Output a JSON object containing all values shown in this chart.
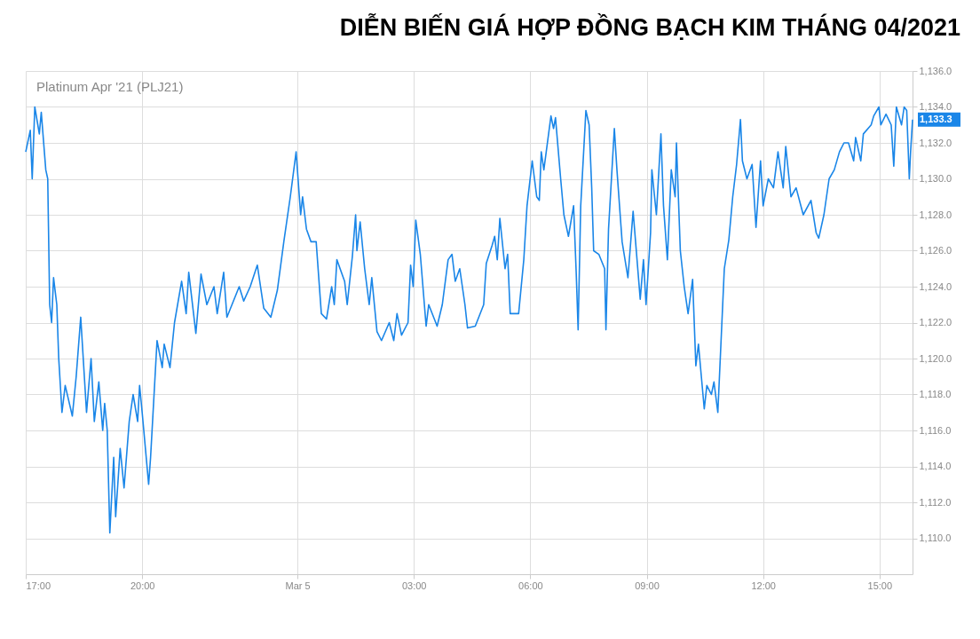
{
  "chart_data": {
    "type": "line",
    "title": "DIỄN BIẾN GIÁ HỢP ĐỒNG BẠCH KIM THÁNG 04/2021",
    "annotations": [
      "Platinum Apr '21 (PLJ21)",
      {
        "text": "1,133.3",
        "x": "2021-03-05T15:51",
        "y": 1133.3
      }
    ],
    "xlim": [
      "2021-03-04T17:00",
      "2021-03-05T15:51"
    ],
    "xticks": [
      {
        "value": "2021-03-04T17:00",
        "label": "17:00"
      },
      {
        "value": "2021-03-04T20:00",
        "label": "20:00"
      },
      {
        "value": "2021-03-05T00:00",
        "label": "Mar 5"
      },
      {
        "value": "2021-03-05T03:00",
        "label": "03:00"
      },
      {
        "value": "2021-03-05T06:00",
        "label": "06:00"
      },
      {
        "value": "2021-03-05T09:00",
        "label": "09:00"
      },
      {
        "value": "2021-03-05T12:00",
        "label": "12:00"
      },
      {
        "value": "2021-03-05T15:00",
        "label": "15:00"
      }
    ],
    "ylim": [
      1108,
      1136
    ],
    "yticks": [
      {
        "value": 1110,
        "label": "1,110.0"
      },
      {
        "value": 1112,
        "label": "1,112.0"
      },
      {
        "value": 1114,
        "label": "1,114.0"
      },
      {
        "value": 1116,
        "label": "1,116.0"
      },
      {
        "value": 1118,
        "label": "1,118.0"
      },
      {
        "value": 1120,
        "label": "1,120.0"
      },
      {
        "value": 1122,
        "label": "1,122.0"
      },
      {
        "value": 1124,
        "label": "1,124.0"
      },
      {
        "value": 1126,
        "label": "1,126.0"
      },
      {
        "value": 1128,
        "label": "1,128.0"
      },
      {
        "value": 1130,
        "label": "1,130.0"
      },
      {
        "value": 1132,
        "label": "1,132.0"
      },
      {
        "value": 1134,
        "label": "1,134.0"
      },
      {
        "value": 1136,
        "label": "1,136.0"
      }
    ],
    "grid": true,
    "series": [
      {
        "color": "#1a86e8",
        "x": [
          "2021-03-04T17:00",
          "2021-03-04T17:07",
          "2021-03-04T17:10",
          "2021-03-04T17:14",
          "2021-03-04T17:21",
          "2021-03-04T17:24",
          "2021-03-04T17:31",
          "2021-03-04T17:34",
          "2021-03-04T17:37",
          "2021-03-04T17:40",
          "2021-03-04T17:43",
          "2021-03-04T17:48",
          "2021-03-04T17:51",
          "2021-03-04T17:56",
          "2021-03-04T18:01",
          "2021-03-04T18:12",
          "2021-03-04T18:18",
          "2021-03-04T18:25",
          "2021-03-04T18:34",
          "2021-03-04T18:41",
          "2021-03-04T18:46",
          "2021-03-04T18:53",
          "2021-03-04T18:59",
          "2021-03-04T19:02",
          "2021-03-04T19:06",
          "2021-03-04T19:10",
          "2021-03-04T19:16",
          "2021-03-04T19:19",
          "2021-03-04T19:26",
          "2021-03-04T19:32",
          "2021-03-04T19:40",
          "2021-03-04T19:46",
          "2021-03-04T19:53",
          "2021-03-04T19:56",
          "2021-03-04T20:00",
          "2021-03-04T20:10",
          "2021-03-04T20:13",
          "2021-03-04T20:23",
          "2021-03-04T20:31",
          "2021-03-04T20:34",
          "2021-03-04T20:43",
          "2021-03-04T20:50",
          "2021-03-04T21:01",
          "2021-03-04T21:08",
          "2021-03-04T21:12",
          "2021-03-04T21:23",
          "2021-03-04T21:31",
          "2021-03-04T21:40",
          "2021-03-04T21:51",
          "2021-03-04T21:56",
          "2021-03-04T22:06",
          "2021-03-04T22:11",
          "2021-03-04T22:30",
          "2021-03-04T22:37",
          "2021-03-04T22:47",
          "2021-03-04T22:58",
          "2021-03-04T23:08",
          "2021-03-04T23:19",
          "2021-03-04T23:29",
          "2021-03-04T23:39",
          "2021-03-04T23:49",
          "2021-03-04T23:58",
          "2021-03-05T00:05",
          "2021-03-05T00:08",
          "2021-03-05T00:14",
          "2021-03-05T00:21",
          "2021-03-05T00:29",
          "2021-03-05T00:37",
          "2021-03-05T00:45",
          "2021-03-05T00:53",
          "2021-03-05T00:57",
          "2021-03-05T01:01",
          "2021-03-05T01:13",
          "2021-03-05T01:17",
          "2021-03-05T01:25",
          "2021-03-05T01:30",
          "2021-03-05T01:32",
          "2021-03-05T01:37",
          "2021-03-05T01:44",
          "2021-03-05T01:51",
          "2021-03-05T01:55",
          "2021-03-05T02:03",
          "2021-03-05T02:10",
          "2021-03-05T02:22",
          "2021-03-05T02:29",
          "2021-03-05T02:34",
          "2021-03-05T02:41",
          "2021-03-05T02:51",
          "2021-03-05T02:55",
          "2021-03-05T02:59",
          "2021-03-05T03:03",
          "2021-03-05T03:10",
          "2021-03-05T03:19",
          "2021-03-05T03:23",
          "2021-03-05T03:36",
          "2021-03-05T03:44",
          "2021-03-05T03:53",
          "2021-03-05T03:59",
          "2021-03-05T04:04",
          "2021-03-05T04:11",
          "2021-03-05T04:19",
          "2021-03-05T04:23",
          "2021-03-05T04:35",
          "2021-03-05T04:48",
          "2021-03-05T04:52",
          "2021-03-05T05:01",
          "2021-03-05T05:05",
          "2021-03-05T05:09",
          "2021-03-05T05:13",
          "2021-03-05T05:21",
          "2021-03-05T05:25",
          "2021-03-05T05:29",
          "2021-03-05T05:42",
          "2021-03-05T05:50",
          "2021-03-05T05:55",
          "2021-03-05T06:03",
          "2021-03-05T06:10",
          "2021-03-05T06:14",
          "2021-03-05T06:17",
          "2021-03-05T06:21",
          "2021-03-05T06:32",
          "2021-03-05T06:36",
          "2021-03-05T06:39",
          "2021-03-05T06:47",
          "2021-03-05T06:52",
          "2021-03-05T06:59",
          "2021-03-05T07:07",
          "2021-03-05T07:11",
          "2021-03-05T07:14",
          "2021-03-05T07:18",
          "2021-03-05T07:26",
          "2021-03-05T07:31",
          "2021-03-05T07:35",
          "2021-03-05T07:38",
          "2021-03-05T07:46",
          "2021-03-05T07:55",
          "2021-03-05T07:57",
          "2021-03-05T08:01",
          "2021-03-05T08:10",
          "2021-03-05T08:14",
          "2021-03-05T08:22",
          "2021-03-05T08:31",
          "2021-03-05T08:39",
          "2021-03-05T08:50",
          "2021-03-05T08:55",
          "2021-03-05T08:59",
          "2021-03-05T09:06",
          "2021-03-05T09:08",
          "2021-03-05T09:15",
          "2021-03-05T09:22",
          "2021-03-05T09:26",
          "2021-03-05T09:32",
          "2021-03-05T09:38",
          "2021-03-05T09:44",
          "2021-03-05T09:46",
          "2021-03-05T09:52",
          "2021-03-05T09:58",
          "2021-03-05T10:04",
          "2021-03-05T10:11",
          "2021-03-05T10:16",
          "2021-03-05T10:20",
          "2021-03-05T10:29",
          "2021-03-05T10:33",
          "2021-03-05T10:40",
          "2021-03-05T10:44",
          "2021-03-05T10:50",
          "2021-03-05T10:55",
          "2021-03-05T11:00",
          "2021-03-05T11:07",
          "2021-03-05T11:13",
          "2021-03-05T11:19",
          "2021-03-05T11:25",
          "2021-03-05T11:28",
          "2021-03-05T11:35",
          "2021-03-05T11:43",
          "2021-03-05T11:49",
          "2021-03-05T11:56",
          "2021-03-05T12:00",
          "2021-03-05T12:08",
          "2021-03-05T12:16",
          "2021-03-05T12:23",
          "2021-03-05T12:31",
          "2021-03-05T12:35",
          "2021-03-05T12:43",
          "2021-03-05T12:51",
          "2021-03-05T13:02",
          "2021-03-05T13:14",
          "2021-03-05T13:22",
          "2021-03-05T13:26",
          "2021-03-05T13:34",
          "2021-03-05T13:42",
          "2021-03-05T13:50",
          "2021-03-05T13:58",
          "2021-03-05T14:05",
          "2021-03-05T14:12",
          "2021-03-05T14:20",
          "2021-03-05T14:23",
          "2021-03-05T14:31",
          "2021-03-05T14:35",
          "2021-03-05T14:47",
          "2021-03-05T14:51",
          "2021-03-05T14:59",
          "2021-03-05T15:02",
          "2021-03-05T15:10",
          "2021-03-05T15:18",
          "2021-03-05T15:22",
          "2021-03-05T15:26",
          "2021-03-05T15:34",
          "2021-03-05T15:38",
          "2021-03-05T15:42",
          "2021-03-05T15:46",
          "2021-03-05T15:48",
          "2021-03-05T15:51"
        ],
        "values": [
          1131.5,
          1132.7,
          1130,
          1134,
          1132.5,
          1133.7,
          1130.5,
          1130,
          1123,
          1122,
          1124.5,
          1123,
          1120,
          1117,
          1118.5,
          1116.8,
          1119,
          1122.3,
          1117,
          1120,
          1116.5,
          1118.7,
          1116,
          1117.5,
          1116,
          1110.3,
          1114.5,
          1111.2,
          1115,
          1112.8,
          1116.5,
          1118,
          1116.5,
          1118.5,
          1117,
          1113,
          1114.5,
          1121,
          1119.5,
          1120.8,
          1119.5,
          1122,
          1124.3,
          1122.5,
          1124.8,
          1121.4,
          1124.7,
          1123,
          1124,
          1122.5,
          1124.8,
          1122.3,
          1124,
          1123.2,
          1124,
          1125.2,
          1122.8,
          1122.3,
          1123.8,
          1126.5,
          1129,
          1131.5,
          1128,
          1129,
          1127.2,
          1126.5,
          1126.5,
          1122.5,
          1122.2,
          1124,
          1123,
          1125.5,
          1124.3,
          1123,
          1125.7,
          1128,
          1126,
          1127.6,
          1125,
          1123,
          1124.5,
          1121.5,
          1121,
          1122,
          1121,
          1122.5,
          1121.3,
          1122,
          1125.2,
          1124,
          1127.7,
          1125.8,
          1121.8,
          1123,
          1121.8,
          1123,
          1125.5,
          1125.8,
          1124.3,
          1125,
          1123,
          1121.7,
          1121.8,
          1123,
          1125.3,
          1126.3,
          1126.8,
          1125.5,
          1127.8,
          1125,
          1125.8,
          1122.5,
          1122.5,
          1125.5,
          1128.5,
          1131,
          1129,
          1128.8,
          1131.5,
          1130.5,
          1133.5,
          1132.8,
          1133.4,
          1130,
          1128,
          1126.8,
          1128.5,
          1124.8,
          1121.6,
          1128.5,
          1133.8,
          1133,
          1129.5,
          1126,
          1125.8,
          1125,
          1121.6,
          1127.2,
          1132.8,
          1130.5,
          1126.5,
          1124.5,
          1128.2,
          1123.3,
          1125.5,
          1123,
          1127,
          1130.5,
          1128,
          1132.5,
          1128.5,
          1125.5,
          1130.5,
          1129,
          1132,
          1126,
          1124,
          1122.5,
          1124.4,
          1119.6,
          1120.8,
          1117.2,
          1118.5,
          1118,
          1118.7,
          1117,
          1121,
          1125,
          1126.6,
          1129,
          1130.8,
          1133.3,
          1131,
          1130,
          1130.8,
          1127.3,
          1131,
          1128.5,
          1130,
          1129.5,
          1131.5,
          1129.5,
          1131.8,
          1129,
          1129.5,
          1128,
          1128.8,
          1127,
          1126.7,
          1128,
          1130,
          1130.5,
          1131.5,
          1132,
          1132,
          1131,
          1132.3,
          1131,
          1132.5,
          1133,
          1133.5,
          1134,
          1133,
          1133.6,
          1133,
          1130.7,
          1134,
          1133,
          1134,
          1133.8,
          1130,
          1131.5,
          1133.3
        ]
      }
    ]
  }
}
